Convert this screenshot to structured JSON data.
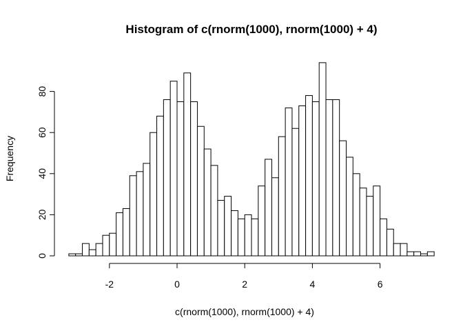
{
  "chart_data": {
    "type": "bar",
    "title": "Histogram of c(rnorm(1000), rnorm(1000) + 4)",
    "xlabel": "c(rnorm(1000), rnorm(1000) + 4)",
    "ylabel": "Frequency",
    "bin_width": 0.2,
    "bin_start": -3.2,
    "values": [
      1,
      1,
      6,
      3,
      6,
      10,
      11,
      21,
      23,
      39,
      41,
      45,
      60,
      68,
      76,
      85,
      75,
      89,
      75,
      63,
      52,
      44,
      27,
      29,
      22,
      18,
      20,
      18,
      34,
      47,
      38,
      58,
      72,
      62,
      73,
      78,
      75,
      94,
      76,
      76,
      56,
      48,
      40,
      33,
      29,
      34,
      18,
      13,
      6,
      6,
      2,
      2,
      1,
      2
    ],
    "xlim": [
      -3.2,
      7.2
    ],
    "ylim": [
      0,
      94
    ],
    "xticks": [
      -2,
      0,
      2,
      4,
      6
    ],
    "yticks": [
      0,
      20,
      40,
      60,
      80
    ],
    "grid": false
  }
}
